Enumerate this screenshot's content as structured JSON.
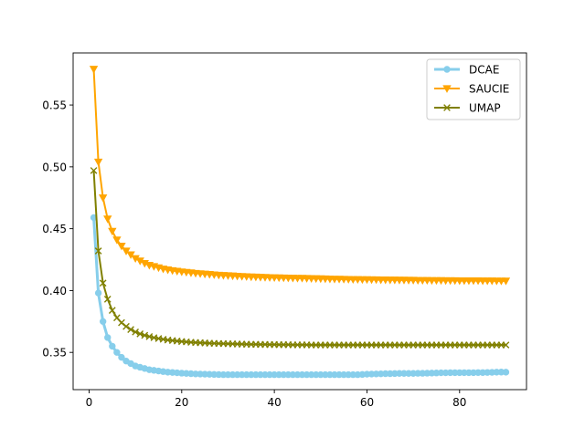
{
  "chart_data": {
    "type": "line",
    "title": "",
    "xlabel": "",
    "ylabel": "",
    "xlim": [
      -3.45,
      94.45
    ],
    "ylim": [
      0.3199,
      0.5921
    ],
    "x_ticks": [
      0,
      20,
      40,
      60,
      80
    ],
    "y_ticks": [
      0.35,
      0.4,
      0.45,
      0.5,
      0.55
    ],
    "y_tick_labels": [
      "0.35",
      "0.40",
      "0.45",
      "0.50",
      "0.55"
    ],
    "grid": false,
    "legend_position": "top-right",
    "x_range": [
      1,
      90
    ],
    "series": [
      {
        "name": "DCAE",
        "color": "#87ceeb",
        "marker": "circle",
        "values": [
          0.459,
          0.398,
          0.375,
          0.362,
          0.355,
          0.35,
          0.346,
          0.343,
          0.341,
          0.339,
          0.338,
          0.337,
          0.336,
          0.3355,
          0.335,
          0.3345,
          0.334,
          0.3338,
          0.3335,
          0.3332,
          0.333,
          0.3328,
          0.3326,
          0.3325,
          0.3324,
          0.3323,
          0.3322,
          0.3321,
          0.332,
          0.332,
          0.332,
          0.332,
          0.332,
          0.332,
          0.332,
          0.332,
          0.332,
          0.332,
          0.332,
          0.332,
          0.332,
          0.332,
          0.332,
          0.332,
          0.332,
          0.332,
          0.332,
          0.332,
          0.332,
          0.332,
          0.332,
          0.332,
          0.332,
          0.332,
          0.332,
          0.332,
          0.332,
          0.332,
          0.3322,
          0.3324,
          0.3325,
          0.3326,
          0.3327,
          0.3328,
          0.3328,
          0.3329,
          0.333,
          0.333,
          0.333,
          0.333,
          0.3331,
          0.3331,
          0.3332,
          0.3333,
          0.3334,
          0.3335,
          0.3335,
          0.3336,
          0.3336,
          0.3336,
          0.3336,
          0.3336,
          0.3336,
          0.3337,
          0.3337,
          0.3338,
          0.3339,
          0.334,
          0.3341,
          0.334
        ]
      },
      {
        "name": "SAUCIE",
        "color": "#ffa500",
        "marker": "triangle-down",
        "values": [
          0.579,
          0.504,
          0.475,
          0.458,
          0.448,
          0.441,
          0.436,
          0.432,
          0.429,
          0.426,
          0.424,
          0.422,
          0.4205,
          0.4195,
          0.4185,
          0.4175,
          0.4168,
          0.4162,
          0.4157,
          0.4152,
          0.4148,
          0.4144,
          0.414,
          0.4137,
          0.4134,
          0.4131,
          0.4128,
          0.4125,
          0.4123,
          0.4121,
          0.4119,
          0.4117,
          0.4115,
          0.4113,
          0.4111,
          0.411,
          0.4108,
          0.4107,
          0.4106,
          0.4105,
          0.4104,
          0.4103,
          0.4102,
          0.4101,
          0.41,
          0.41,
          0.4099,
          0.4098,
          0.4097,
          0.4096,
          0.4095,
          0.4094,
          0.4093,
          0.4093,
          0.4092,
          0.4091,
          0.409,
          0.409,
          0.4089,
          0.4089,
          0.4088,
          0.4088,
          0.4087,
          0.4087,
          0.4086,
          0.4086,
          0.4085,
          0.4085,
          0.4084,
          0.4084,
          0.4083,
          0.4083,
          0.4083,
          0.4082,
          0.4082,
          0.4082,
          0.4081,
          0.4081,
          0.4081,
          0.408,
          0.408,
          0.408,
          0.408,
          0.408,
          0.4079,
          0.4079,
          0.4079,
          0.4078,
          0.4078,
          0.4078
        ]
      },
      {
        "name": "UMAP",
        "color": "#808000",
        "marker": "x",
        "values": [
          0.497,
          0.432,
          0.406,
          0.393,
          0.384,
          0.378,
          0.374,
          0.371,
          0.3685,
          0.3665,
          0.365,
          0.3638,
          0.3628,
          0.3619,
          0.3612,
          0.3606,
          0.36,
          0.3596,
          0.3592,
          0.3588,
          0.3585,
          0.3582,
          0.358,
          0.3578,
          0.3576,
          0.3574,
          0.3573,
          0.3572,
          0.3571,
          0.357,
          0.3569,
          0.3568,
          0.3567,
          0.3566,
          0.3565,
          0.3565,
          0.3564,
          0.3564,
          0.3563,
          0.3563,
          0.3562,
          0.3562,
          0.3562,
          0.3561,
          0.3561,
          0.3561,
          0.3561,
          0.356,
          0.356,
          0.356,
          0.356,
          0.356,
          0.356,
          0.356,
          0.356,
          0.356,
          0.356,
          0.356,
          0.356,
          0.356,
          0.356,
          0.356,
          0.356,
          0.356,
          0.356,
          0.356,
          0.356,
          0.356,
          0.356,
          0.356,
          0.356,
          0.356,
          0.356,
          0.356,
          0.356,
          0.356,
          0.356,
          0.356,
          0.356,
          0.356,
          0.356,
          0.356,
          0.356,
          0.356,
          0.356,
          0.356,
          0.356,
          0.356,
          0.356,
          0.356
        ]
      }
    ]
  }
}
